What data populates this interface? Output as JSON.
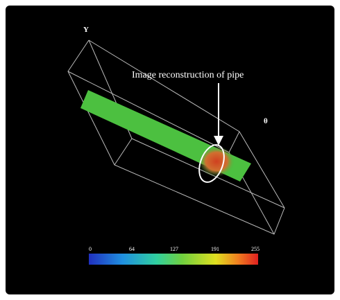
{
  "axes": {
    "y_label": "Y",
    "theta_label": "θ"
  },
  "annotation": "Image reconstruction of pipe",
  "colorbar": {
    "labels": [
      "0",
      "64",
      "127",
      "191",
      "255"
    ]
  }
}
